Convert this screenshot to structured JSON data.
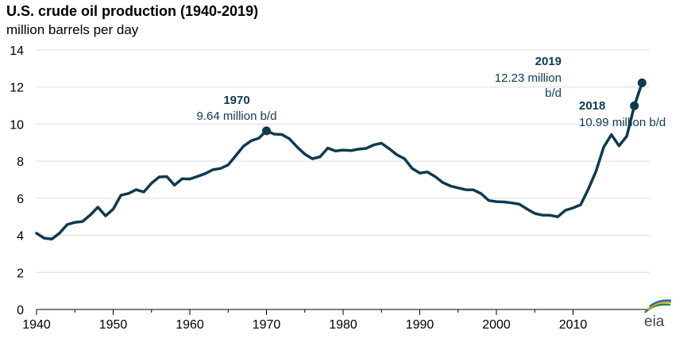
{
  "chart_data": {
    "type": "line",
    "title": "U.S. crude oil production (1940-2019)",
    "subtitle": "million barrels per day",
    "xlim": [
      1940,
      2020
    ],
    "ylim": [
      0,
      14
    ],
    "x_ticks": [
      "1940",
      "1950",
      "1960",
      "1970",
      "1980",
      "1990",
      "2000",
      "2010"
    ],
    "y_ticks": [
      "0",
      "2",
      "4",
      "6",
      "8",
      "10",
      "12",
      "14"
    ],
    "grid": "horizontal",
    "color": "#0f3a50",
    "series": [
      {
        "x": [
          1940,
          1941,
          1942,
          1943,
          1944,
          1945,
          1946,
          1947,
          1948,
          1949,
          1950,
          1951,
          1952,
          1953,
          1954,
          1955,
          1956,
          1957,
          1958,
          1959,
          1960,
          1961,
          1962,
          1963,
          1964,
          1965,
          1966,
          1967,
          1968,
          1969,
          1970,
          1971,
          1972,
          1973,
          1974,
          1975,
          1976,
          1977,
          1978,
          1979,
          1980,
          1981,
          1982,
          1983,
          1984,
          1985,
          1986,
          1987,
          1988,
          1989,
          1990,
          1991,
          1992,
          1993,
          1994,
          1995,
          1996,
          1997,
          1998,
          1999,
          2000,
          2001,
          2002,
          2003,
          2004,
          2005,
          2006,
          2007,
          2008,
          2009,
          2010,
          2011,
          2012,
          2013,
          2014,
          2015,
          2016,
          2017,
          2018,
          2019
        ],
        "y": [
          4.11,
          3.85,
          3.8,
          4.12,
          4.58,
          4.7,
          4.75,
          5.09,
          5.52,
          5.05,
          5.41,
          6.16,
          6.26,
          6.46,
          6.34,
          6.81,
          7.15,
          7.17,
          6.71,
          7.05,
          7.04,
          7.18,
          7.33,
          7.54,
          7.61,
          7.8,
          8.3,
          8.81,
          9.1,
          9.24,
          9.64,
          9.46,
          9.44,
          9.21,
          8.77,
          8.38,
          8.13,
          8.24,
          8.71,
          8.55,
          8.6,
          8.57,
          8.65,
          8.69,
          8.88,
          8.97,
          8.68,
          8.35,
          8.14,
          7.61,
          7.36,
          7.42,
          7.17,
          6.85,
          6.66,
          6.56,
          6.46,
          6.45,
          6.25,
          5.88,
          5.82,
          5.8,
          5.75,
          5.68,
          5.42,
          5.18,
          5.09,
          5.08,
          5.0,
          5.35,
          5.48,
          5.65,
          6.5,
          7.46,
          8.76,
          9.43,
          8.83,
          9.35,
          10.99,
          12.23
        ]
      }
    ],
    "annotations": [
      {
        "year": "1970",
        "text": "9.64 million b/d",
        "x": 1970,
        "y": 9.64
      },
      {
        "year": "2018",
        "text": "10.99 million b/d",
        "x": 2018,
        "y": 10.99
      },
      {
        "year": "2019",
        "text": "12.23 million",
        "text2": "b/d",
        "x": 2019,
        "y": 12.23
      }
    ]
  },
  "logo": {
    "text": "eia",
    "colors": [
      "#1a8a4a",
      "#f2a81d",
      "#1d6fb8"
    ]
  }
}
